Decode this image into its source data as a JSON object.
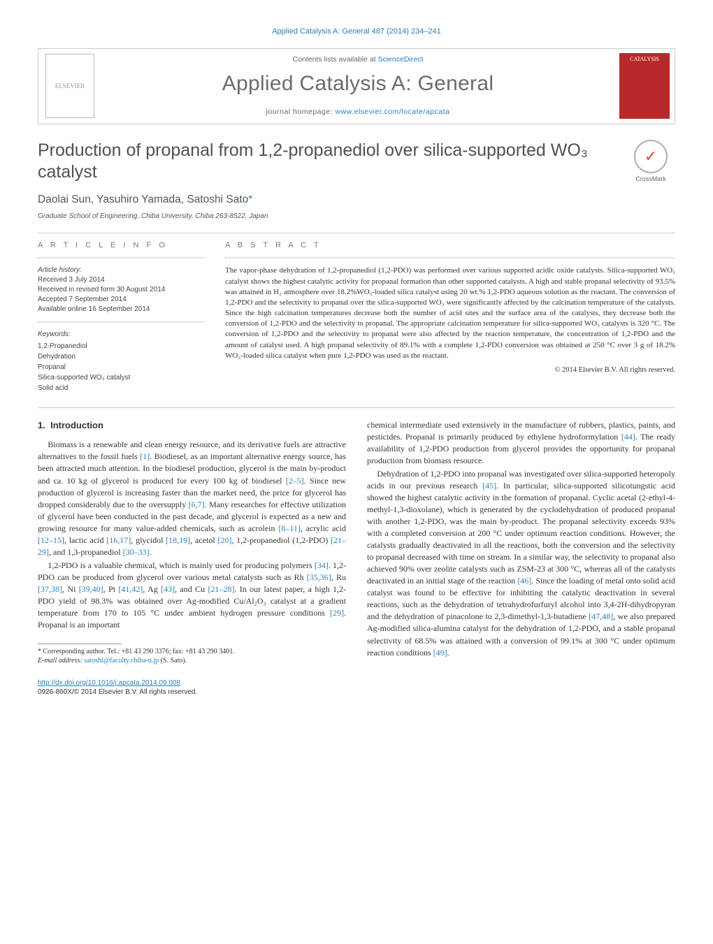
{
  "running_head": "Applied Catalysis A: General 487 (2014) 234–241",
  "header": {
    "contents_prefix": "Contents lists available at ",
    "contents_link": "ScienceDirect",
    "journal_name": "Applied Catalysis A: General",
    "homepage_prefix": "journal homepage: ",
    "homepage_url": "www.elsevier.com/locate/apcata",
    "elsevier_label": "ELSEVIER",
    "cover_label": "CATALYSIS"
  },
  "crossmark": {
    "glyph": "✓",
    "label": "CrossMark"
  },
  "title": "Production of propanal from 1,2-propanediol over silica-supported WO₃ catalyst",
  "authors_line": "Daolai Sun, Yasuhiro Yamada, Satoshi Sato",
  "corr_marker": "*",
  "affiliation": "Graduate School of Engineering, Chiba University, Chiba 263-8522, Japan",
  "article_info": {
    "heading": "A R T I C L E   I N F O",
    "history_head": "Article history:",
    "history": [
      "Received 3 July 2014",
      "Received in revised form 30 August 2014",
      "Accepted 7 September 2014",
      "Available online 16 September 2014"
    ],
    "keywords_head": "Keywords:",
    "keywords": [
      "1,2-Propanediol",
      "Dehydration",
      "Propanal",
      "Silica-supported WO₃ catalyst",
      "Solid acid"
    ]
  },
  "abstract": {
    "heading": "A B S T R A C T",
    "text": "The vapor-phase dehydration of 1,2-propanediol (1,2-PDO) was performed over various supported acidic oxide catalysts. Silica-supported WO₃ catalyst shows the highest catalytic activity for propanal formation than other supported catalysts. A high and stable propanal selectivity of 93.5% was attained in H₂ atmosphere over 18.2%WO₃-loaded silica catalyst using 20 wt.% 1,2-PDO aqueous solution as the reactant. The conversion of 1,2-PDO and the selectivity to propanal over the silica-supported WO₃ were significantly affected by the calcination temperature of the catalysts. Since the high calcination temperatures decrease both the number of acid sites and the surface area of the catalysts, they decrease both the conversion of 1,2-PDO and the selectivity to propanal. The appropriate calcination temperature for silica-supported WO₃ catalysts is 320 °C. The conversion of 1,2-PDO and the selectivity to propanal were also affected by the reaction temperature, the concentration of 1,2-PDO and the amount of catalyst used. A high propanal selectivity of 89.1% with a complete 1,2-PDO conversion was obtained at 250 °C over 3 g of 18.2% WO₃-loaded silica catalyst when pure 1,2-PDO was used as the reactant.",
    "copyright": "© 2014 Elsevier B.V. All rights reserved."
  },
  "body": {
    "section_num": "1.",
    "section_title": "Introduction",
    "p1_a": "Biomass is a renewable and clean energy resource, and its derivative fuels are attractive alternatives to the fossil fuels ",
    "p1_r1": "[1]",
    "p1_b": ". Biodiesel, as an important alternative energy source, has been attracted much attention. In the biodiesel production, glycerol is the main by-product and ca. 10 kg of glycerol is produced for every 100 kg of biodiesel ",
    "p1_r2": "[2–5]",
    "p1_c": ". Since new production of glycerol is increasing faster than the market need, the price for glycerol has dropped considerably due to the oversupply ",
    "p1_r3": "[6,7]",
    "p1_d": ". Many researches for effective utilization of glycerol have been conducted in the past decade, and glycerol is expected as a new and growing resource for many value-added chemicals, such as acrolein ",
    "p1_r4": "[8–11]",
    "p1_e": ", acrylic acid ",
    "p1_r5": "[12–15]",
    "p1_f": ", lactic acid ",
    "p1_r6": "[16,17]",
    "p1_g": ", glycidol ",
    "p1_r7": "[18,19]",
    "p1_h": ", acetol ",
    "p1_r8": "[20]",
    "p1_i": ", 1,2-propanediol (1,2-PDO) ",
    "p1_r9": "[21–29]",
    "p1_j": ", and 1,3-propanediol ",
    "p1_r10": "[30–33]",
    "p1_k": ".",
    "p2_a": "1,2-PDO is a valuable chemical, which is mainly used for producing polymers ",
    "p2_r1": "[34]",
    "p2_b": ". 1,2-PDO can be produced from glycerol over various metal catalysts such as Rh ",
    "p2_r2": "[35,36]",
    "p2_c": ", Ru ",
    "p2_r3": "[37,38]",
    "p2_d": ", Ni ",
    "p2_r4": "[39,40]",
    "p2_e": ", Pt ",
    "p2_r5": "[41,42]",
    "p2_f": ", Ag ",
    "p2_r6": "[43]",
    "p2_g": ", and Cu ",
    "p2_r7": "[21–28]",
    "p2_h": ". In our latest paper, a high 1,2-PDO yield of 98.3% was obtained over Ag-modified Cu/Al₂O₃ catalyst at a gradient temperature from 170 to 105 °C under ambient hydrogen pressure conditions ",
    "p2_r8": "[29]",
    "p2_i": ". Propanal is an important",
    "p3_a": "chemical intermediate used extensively in the manufacture of rubbers, plastics, paints, and pesticides. Propanal is primarily produced by ethylene hydroformylation ",
    "p3_r1": "[44]",
    "p3_b": ". The ready availability of 1,2-PDO production from glycerol provides the opportunity for propanal production from biomass resource.",
    "p4_a": "Dehydration of 1,2-PDO into propanal was investigated over silica-supported heteropoly acids in our previous research ",
    "p4_r1": "[45]",
    "p4_b": ". In particular, silica-supported silicotungstic acid showed the highest catalytic activity in the formation of propanal. Cyclic acetal (2-ethyl-4-methyl-1,3-dioxolane), which is generated by the cyclodehydration of produced propanal with another 1,2-PDO, was the main by-product. The propanal selectivity exceeds 93% with a completed conversion at 200 °C under optimum reaction conditions. However, the catalysts gradually deactivated in all the reactions, both the conversion and the selectivity to propanal decreased with time on stream. In a similar way, the selectivity to propanal also achieved 90% over zeolite catalysts such as ZSM-23 at 300 °C, whereas all of the catalysts deactivated in an initial stage of the reaction ",
    "p4_r2": "[46]",
    "p4_c": ". Since the loading of metal onto solid acid catalyst was found to be effective for inhibiting the catalytic deactivation in several reactions, such as the dehydration of tetrahydrofurfuryl alcohol into 3,4-2H-dihydropyran and the dehydration of pinacolone to 2,3-dimethyl-1,3-butadiene ",
    "p4_r3": "[47,48]",
    "p4_d": ", we also prepared Ag-modified silica-alumina catalyst for the dehydration of 1,2-PDO, and a stable propanal selectivity of 68.5% was attained with a conversion of 99.1% at 300 °C under optimum reaction conditions ",
    "p4_r4": "[49]",
    "p4_e": "."
  },
  "footnotes": {
    "corr": "* Corresponding author. Tel.: +81 43 290 3376; fax: +81 43 290 3401.",
    "email_label": "E-mail address: ",
    "email": "satoshi@faculty.chiba-u.jp",
    "email_suffix": " (S. Sato)."
  },
  "footer": {
    "doi": "http://dx.doi.org/10.1016/j.apcata.2014.09.008",
    "issn_line": "0926-860X/© 2014 Elsevier B.V. All rights reserved."
  },
  "colors": {
    "link": "#2a7fb8",
    "rule": "#cccccc",
    "text": "#333333",
    "muted": "#666666",
    "cover_bg": "#b82a2a"
  }
}
